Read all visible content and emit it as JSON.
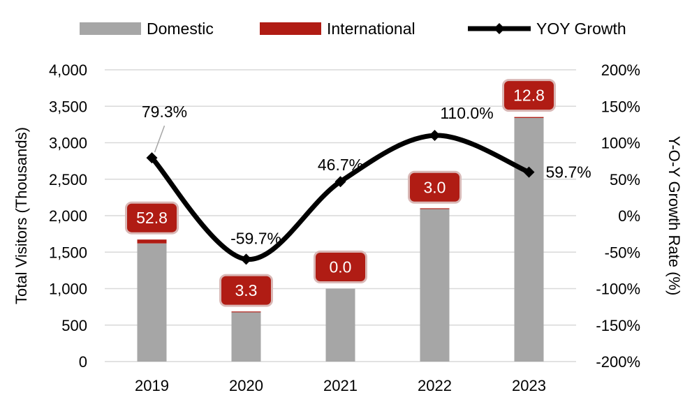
{
  "chart_data": {
    "type": "bar",
    "categories": [
      "2019",
      "2020",
      "2021",
      "2022",
      "2023"
    ],
    "series": [
      {
        "name": "Domestic",
        "kind": "bar",
        "axis": "left",
        "color": "#a6a6a6",
        "values": [
          1620,
          675,
          1000,
          2090,
          3340
        ]
      },
      {
        "name": "International",
        "kind": "bar",
        "axis": "left",
        "color": "#b01c14",
        "values": [
          52.8,
          3.3,
          0.0,
          3.0,
          12.8
        ],
        "labels": [
          "52.8",
          "3.3",
          "0.0",
          "3.0",
          "12.8"
        ]
      },
      {
        "name": "YOY Growth",
        "kind": "line",
        "axis": "right",
        "color": "#000000",
        "values": [
          79.3,
          -59.7,
          46.7,
          110.0,
          59.7
        ],
        "labels": [
          "79.3%",
          "-59.7%",
          "46.7%",
          "110.0%",
          "59.7%"
        ]
      }
    ],
    "y_left": {
      "label": "Total Visitors (Thousands)",
      "range": [
        0,
        4000
      ],
      "ticks": [
        "0",
        "500",
        "1,000",
        "1,500",
        "2,000",
        "2,500",
        "3,000",
        "3,500",
        "4,000"
      ]
    },
    "y_right": {
      "label": "Y-O-Y Growth Rate (%)",
      "range": [
        -200,
        200
      ],
      "ticks": [
        "-200%",
        "-150%",
        "-100%",
        "-50%",
        "0%",
        "50%",
        "100%",
        "150%",
        "200%"
      ]
    },
    "grid": true,
    "legend": "top-center"
  }
}
